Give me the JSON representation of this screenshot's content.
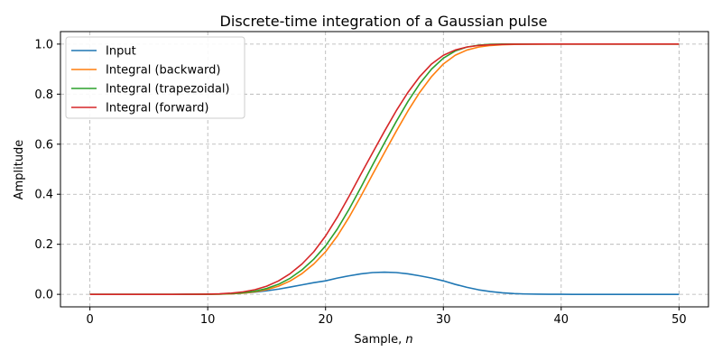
{
  "chart_data": {
    "type": "line",
    "title": "Discrete-time integration of a Gaussian pulse",
    "xlabel_text": "Sample, ",
    "xlabel_var": "n",
    "ylabel": "Amplitude",
    "xlim": [
      -2.5,
      52.5
    ],
    "ylim": [
      -0.05,
      1.05
    ],
    "xticks": [
      0,
      10,
      20,
      30,
      40,
      50
    ],
    "yticks": [
      0.0,
      0.2,
      0.4,
      0.6,
      0.8,
      1.0
    ],
    "xtick_labels": [
      "0",
      "10",
      "20",
      "30",
      "40",
      "50"
    ],
    "ytick_labels": [
      "0.0",
      "0.2",
      "0.4",
      "0.6",
      "0.8",
      "1.0"
    ],
    "grid": true,
    "legend_position": "top-left",
    "x": [
      0,
      1,
      2,
      3,
      4,
      5,
      6,
      7,
      8,
      9,
      10,
      11,
      12,
      13,
      14,
      15,
      16,
      17,
      18,
      19,
      20,
      21,
      22,
      23,
      24,
      25,
      26,
      27,
      28,
      29,
      30,
      31,
      32,
      33,
      34,
      35,
      36,
      37,
      38,
      39,
      40,
      41,
      42,
      43,
      44,
      45,
      46,
      47,
      48,
      49,
      50
    ],
    "series": [
      {
        "name": "Input",
        "color": "#1f77b4",
        "values": [
          0,
          0,
          0,
          0,
          0,
          0,
          0,
          0,
          0.0001,
          0.0002,
          0.0006,
          0.0013,
          0.0027,
          0.005,
          0.0087,
          0.014,
          0.0208,
          0.029,
          0.0379,
          0.0466,
          0.054,
          0.065,
          0.074,
          0.082,
          0.087,
          0.0885,
          0.087,
          0.082,
          0.074,
          0.065,
          0.054,
          0.04,
          0.028,
          0.018,
          0.011,
          0.006,
          0.003,
          0.0014,
          0.0006,
          0.0002,
          0.0001,
          0,
          0,
          0,
          0,
          0,
          0,
          0,
          0,
          0,
          0
        ]
      },
      {
        "name": "Integral (backward)",
        "color": "#ff7f0e",
        "values": [
          0,
          0,
          0,
          0,
          0,
          0,
          0,
          0,
          0,
          0.0001,
          0.0003,
          0.0009,
          0.0022,
          0.0049,
          0.0099,
          0.0186,
          0.0326,
          0.0535,
          0.0828,
          0.1213,
          0.17,
          0.2331,
          0.3085,
          0.3924,
          0.4801,
          0.5664,
          0.6517,
          0.7336,
          0.8076,
          0.8705,
          0.9207,
          0.9553,
          0.9763,
          0.9882,
          0.9945,
          0.9976,
          0.999,
          0.9996,
          0.9999,
          1.0,
          1.0,
          1.0,
          1.0,
          1.0,
          1.0,
          1.0,
          1.0,
          1.0,
          1.0,
          1.0,
          1.0
        ]
      },
      {
        "name": "Integral (trapezoidal)",
        "color": "#2ca02c",
        "values": [
          0,
          0,
          0,
          0,
          0,
          0,
          0,
          0,
          0,
          0.0002,
          0.0004,
          0.0012,
          0.0029,
          0.0063,
          0.0125,
          0.0233,
          0.04,
          0.0644,
          0.0978,
          0.1405,
          0.1936,
          0.2611,
          0.3404,
          0.4275,
          0.5175,
          0.6052,
          0.6905,
          0.7711,
          0.8421,
          0.9004,
          0.9437,
          0.9723,
          0.9882,
          0.9959,
          0.9991,
          1.0,
          1.0,
          1.0,
          1.0,
          1.0,
          1.0,
          1.0,
          1.0,
          1.0,
          1.0,
          1.0,
          1.0,
          1.0,
          1.0,
          1.0,
          1.0
        ]
      },
      {
        "name": "Integral (forward)",
        "color": "#d62728",
        "values": [
          0,
          0,
          0,
          0,
          0,
          0,
          0,
          0,
          0.0001,
          0.0003,
          0.0009,
          0.0022,
          0.0049,
          0.0099,
          0.0186,
          0.0326,
          0.0535,
          0.0828,
          0.1213,
          0.17,
          0.2331,
          0.3085,
          0.3924,
          0.4801,
          0.5664,
          0.6517,
          0.7336,
          0.8076,
          0.8705,
          0.9207,
          0.9553,
          0.9763,
          0.9882,
          0.9945,
          0.9976,
          0.999,
          0.9996,
          0.9999,
          1.0,
          1.0,
          1.0,
          1.0,
          1.0,
          1.0,
          1.0,
          1.0,
          1.0,
          1.0,
          1.0,
          1.0,
          1.0
        ]
      }
    ]
  }
}
